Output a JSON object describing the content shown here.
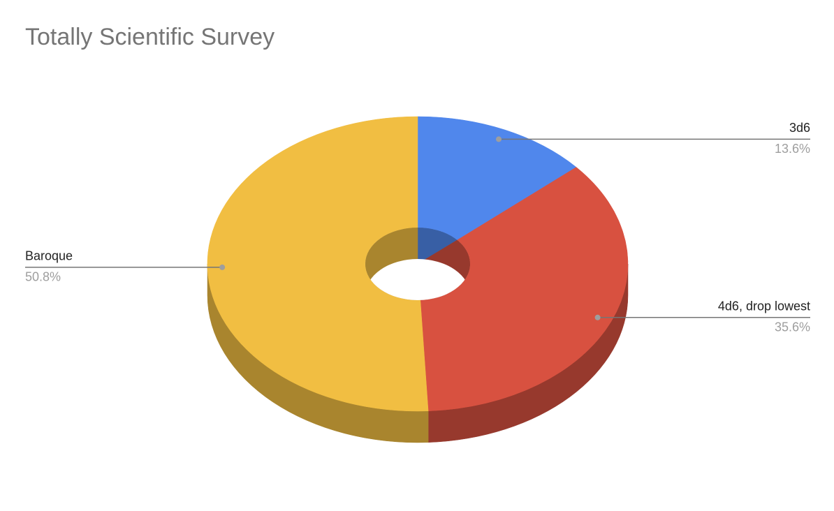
{
  "chart_data": {
    "type": "pie",
    "title": "Totally Scientific Survey",
    "categories": [
      "3d6",
      "4d6, drop lowest",
      "Baroque"
    ],
    "values": [
      13.6,
      35.6,
      50.8
    ],
    "value_labels": [
      "13.6%",
      "35.6%",
      "50.8%"
    ],
    "colors": [
      "#5087ec",
      "#d85140",
      "#f1be42"
    ]
  }
}
